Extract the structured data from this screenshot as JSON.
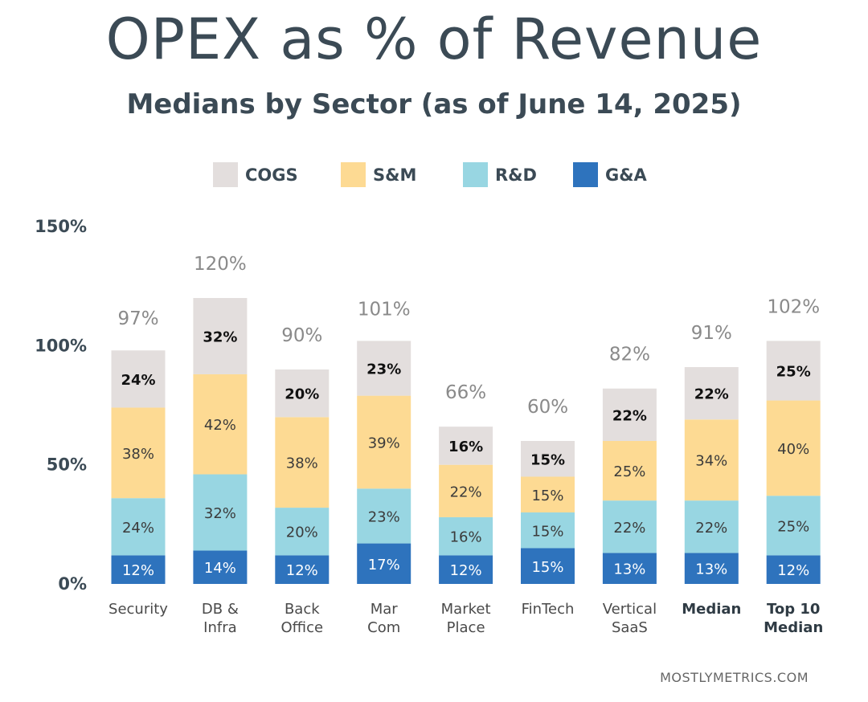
{
  "header": {
    "title": "OPEX as % of Revenue",
    "subtitle": "Medians by Sector (as of June 14, 2025)"
  },
  "footer": {
    "source": "MOSTLYMETRICS.COM"
  },
  "colors": {
    "COGS": "#e3dedd",
    "S&M": "#fdda93",
    "R&D": "#98d6e2",
    "G&A": "#2e73bd"
  },
  "chart_data": {
    "type": "bar",
    "stacked": true,
    "categories": [
      [
        "Security"
      ],
      [
        "DB &",
        "Infra"
      ],
      [
        "Back",
        "Office"
      ],
      [
        "Mar",
        "Com"
      ],
      [
        "Market",
        "Place"
      ],
      [
        "FinTech"
      ],
      [
        "Vertical",
        "SaaS"
      ],
      [
        "Median"
      ],
      [
        "Top 10",
        "Median"
      ]
    ],
    "bold_categories": [
      7,
      8
    ],
    "series": [
      {
        "name": "G&A",
        "values": [
          12,
          14,
          12,
          17,
          12,
          15,
          13,
          13,
          12
        ],
        "labels": [
          "12%",
          "14%",
          "12%",
          "17%",
          "12%",
          "15%",
          "13%",
          "13%",
          "12%"
        ]
      },
      {
        "name": "R&D",
        "values": [
          24,
          32,
          20,
          23,
          16,
          15,
          22,
          22,
          25
        ],
        "labels": [
          "24%",
          "32%",
          "20%",
          "23%",
          "16%",
          "15%",
          "22%",
          "22%",
          "25%"
        ]
      },
      {
        "name": "S&M",
        "values": [
          38,
          42,
          38,
          39,
          22,
          15,
          25,
          34,
          40
        ],
        "labels": [
          "38%",
          "42%",
          "38%",
          "39%",
          "22%",
          "15%",
          "25%",
          "34%",
          "40%"
        ]
      },
      {
        "name": "COGS",
        "values": [
          24,
          32,
          20,
          23,
          16,
          15,
          22,
          22,
          25
        ],
        "labels": [
          "24%",
          "32%",
          "20%",
          "23%",
          "16%",
          "15%",
          "22%",
          "22%",
          "25%"
        ]
      }
    ],
    "totals": [
      97,
      120,
      90,
      101,
      66,
      60,
      82,
      91,
      102
    ],
    "total_labels": [
      "97%",
      "120%",
      "90%",
      "101%",
      "66%",
      "60%",
      "82%",
      "91%",
      "102%"
    ],
    "legend": [
      "COGS",
      "S&M",
      "R&D",
      "G&A"
    ],
    "legend_position": "top",
    "yticks": [
      0,
      50,
      100,
      150
    ],
    "ytick_labels": [
      "0%",
      "50%",
      "100%",
      "150%"
    ],
    "ylim": [
      0,
      150
    ],
    "grid": false
  }
}
